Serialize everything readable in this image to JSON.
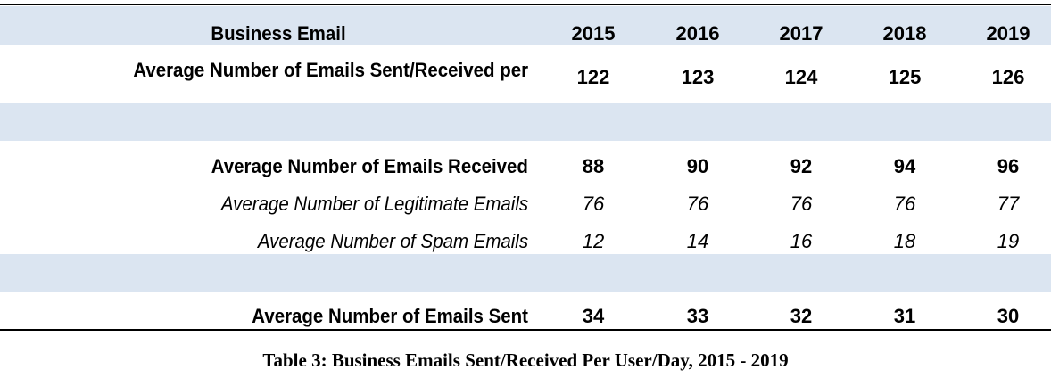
{
  "table": {
    "header": {
      "label": "Business Email",
      "years": [
        "2015",
        "2016",
        "2017",
        "2018",
        "2019"
      ]
    },
    "rows": [
      {
        "label": "Average Number of Emails Sent/Received per",
        "values": [
          "122",
          "123",
          "124",
          "125",
          "126"
        ],
        "style": "bold"
      },
      {
        "label": "Average Number of Emails Received",
        "values": [
          "88",
          "90",
          "92",
          "94",
          "96"
        ],
        "style": "bold"
      },
      {
        "label": "Average Number of Legitimate Emails",
        "values": [
          "76",
          "76",
          "76",
          "76",
          "77"
        ],
        "style": "italic"
      },
      {
        "label": "Average Number of Spam Emails",
        "values": [
          "12",
          "14",
          "16",
          "18",
          "19"
        ],
        "style": "italic"
      },
      {
        "label": "Average Number of Emails Sent",
        "values": [
          "34",
          "33",
          "32",
          "31",
          "30"
        ],
        "style": "bold"
      }
    ],
    "band_color": "#dbe5f1"
  },
  "caption": "Table 3: Business Emails Sent/Received Per User/Day, 2015 - 2019"
}
